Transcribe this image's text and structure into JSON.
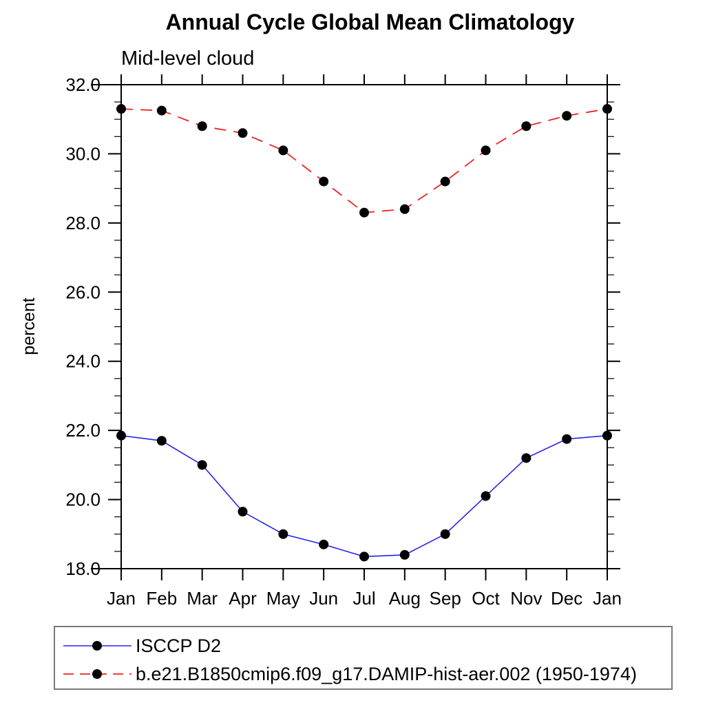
{
  "header": {
    "title": "Annual Cycle Global Mean Climatology",
    "subtitle": "Mid-level cloud"
  },
  "chart_data": {
    "type": "line",
    "title": "Annual Cycle Global Mean Climatology",
    "subtitle": "Mid-level cloud",
    "xlabel": "",
    "ylabel": "percent",
    "categories": [
      "Jan",
      "Feb",
      "Mar",
      "Apr",
      "May",
      "Jun",
      "Jul",
      "Aug",
      "Sep",
      "Oct",
      "Nov",
      "Dec",
      "Jan"
    ],
    "ylim": [
      18.0,
      32.0
    ],
    "ytick_major": 2.0,
    "ytick_minor": 0.5,
    "ytick_labels": [
      "18.0",
      "20.0",
      "22.0",
      "24.0",
      "26.0",
      "28.0",
      "30.0",
      "32.0"
    ],
    "grid": false,
    "legend_position": "bottom-left-box",
    "marker": "filled-circle",
    "marker_color": "#000000",
    "series": [
      {
        "name": "ISCCP D2",
        "color": "#2222ee",
        "style": "solid",
        "values": [
          21.85,
          21.7,
          21.0,
          19.65,
          19.0,
          18.7,
          18.35,
          18.4,
          19.0,
          20.1,
          21.2,
          21.75,
          21.85
        ]
      },
      {
        "name": "b.e21.B1850cmip6.f09_g17.DAMIP-hist-aer.002 (1950-1974)",
        "color": "#ee2222",
        "style": "dashed",
        "values": [
          31.3,
          31.25,
          30.8,
          30.6,
          30.1,
          29.2,
          28.3,
          28.4,
          29.2,
          30.1,
          30.8,
          31.1,
          31.3
        ]
      }
    ]
  }
}
